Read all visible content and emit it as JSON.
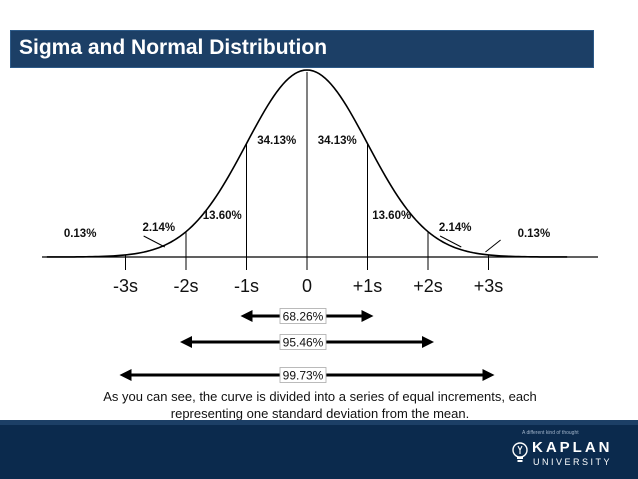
{
  "slide": {
    "title": "Sigma and Normal Distribution",
    "caption": "As you can see, the curve is divided into a series of equal increments, each representing one standard deviation from the mean."
  },
  "chart_data": {
    "type": "line",
    "title": "",
    "x_ticks": [
      "-3s",
      "-2s",
      "-1s",
      "0",
      "+1s",
      "+2s",
      "+3s"
    ],
    "x_values": [
      -3,
      -2,
      -1,
      0,
      1,
      2,
      3
    ],
    "region_percents": {
      "outer_left": "0.13%",
      "left_3": "2.14%",
      "left_2": "13.60%",
      "left_1": "34.13%",
      "right_1": "34.13%",
      "right_2": "13.60%",
      "right_3": "2.14%",
      "outer_right": "0.13%"
    },
    "ranges": [
      {
        "label": "68.26%",
        "from": -1,
        "to": 1
      },
      {
        "label": "95.46%",
        "from": -2,
        "to": 2
      },
      {
        "label": "99.73%",
        "from": -3,
        "to": 3
      }
    ],
    "colors": {
      "curve": "#000000",
      "title_bar": "#1c3f66",
      "footer": "#0b2a4d"
    }
  },
  "logo": {
    "tagline": "A different kind of thought",
    "word": "KAPLAN",
    "sub": "UNIVERSITY"
  }
}
